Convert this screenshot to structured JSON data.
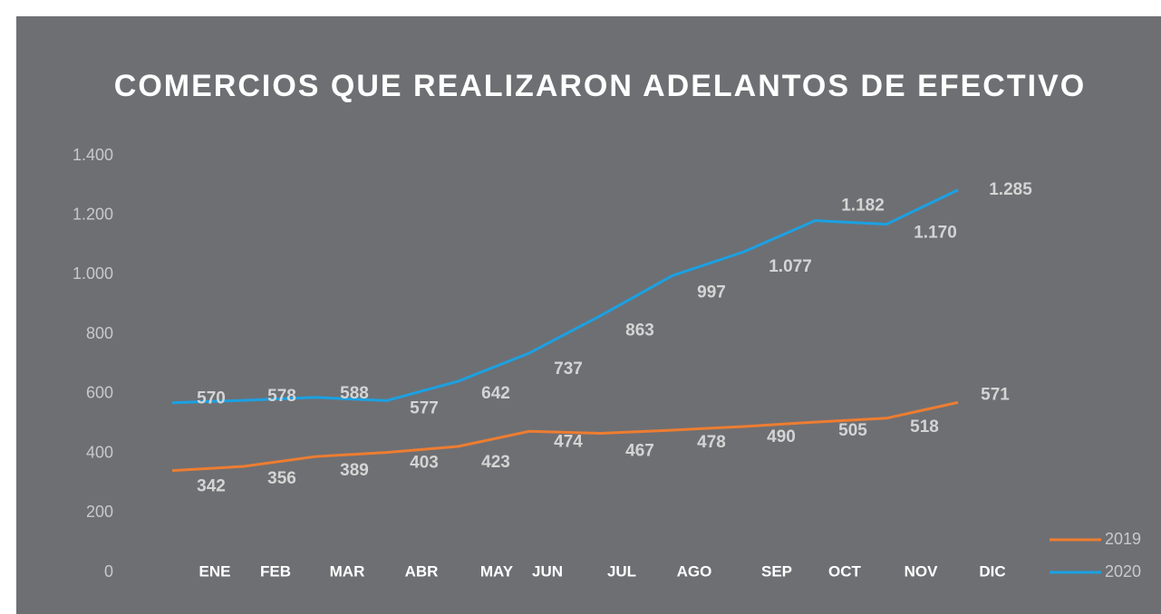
{
  "chart_data": {
    "type": "line",
    "title": "COMERCIOS QUE REALIZARON ADELANTOS DE EFECTIVO",
    "categories": [
      "ENE",
      "FEB",
      "MAR",
      "ABR",
      "MAY",
      "JUN",
      "JUL",
      "AGO",
      "SEP",
      "OCT",
      "NOV",
      "DIC"
    ],
    "series": [
      {
        "name": "2019",
        "color": "#ed7d31",
        "values": [
          342,
          356,
          389,
          403,
          423,
          474,
          467,
          478,
          490,
          505,
          518,
          571
        ]
      },
      {
        "name": "2020",
        "color": "#1ba1e2",
        "values": [
          570,
          578,
          588,
          577,
          642,
          737,
          863,
          997,
          1077,
          1182,
          1170,
          1285
        ],
        "value_labels": [
          "570",
          "578",
          "588",
          "577",
          "642",
          "737",
          "863",
          "997",
          "1.077",
          "1.182",
          "1.170",
          "1.285"
        ]
      }
    ],
    "ylim": [
      0,
      1400
    ],
    "yticks": [
      0,
      200,
      400,
      600,
      800,
      {
        "value": 1000,
        "label": "1.000"
      },
      {
        "value": 1200,
        "label": "1.200"
      },
      {
        "value": 1400,
        "label": "1.400"
      }
    ],
    "grid": false,
    "legend": "bottom-right"
  }
}
